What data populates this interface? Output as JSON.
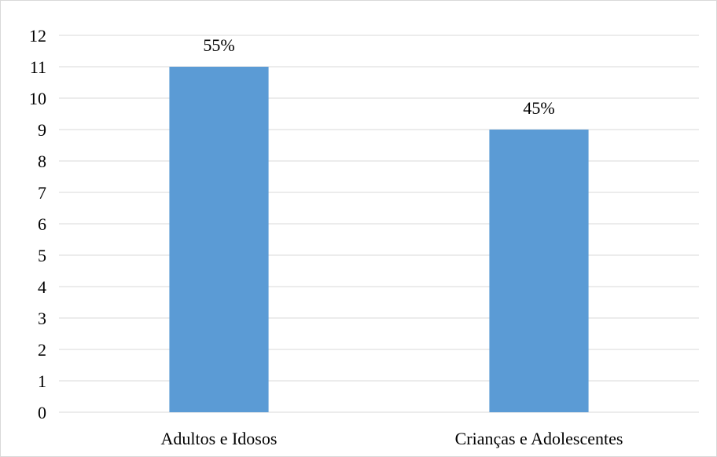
{
  "chart_data": {
    "type": "bar",
    "categories": [
      "Adultos e Idosos",
      "Crianças e Adolescentes"
    ],
    "values": [
      11,
      9
    ],
    "data_labels": [
      "55%",
      "45%"
    ],
    "ylim": [
      0,
      12
    ],
    "y_ticks": [
      "0",
      "1",
      "2",
      "3",
      "4",
      "5",
      "6",
      "7",
      "8",
      "9",
      "10",
      "11",
      "12"
    ],
    "grid": true,
    "bar_color": "#5b9bd5",
    "grid_color": "#d9d9d9"
  }
}
